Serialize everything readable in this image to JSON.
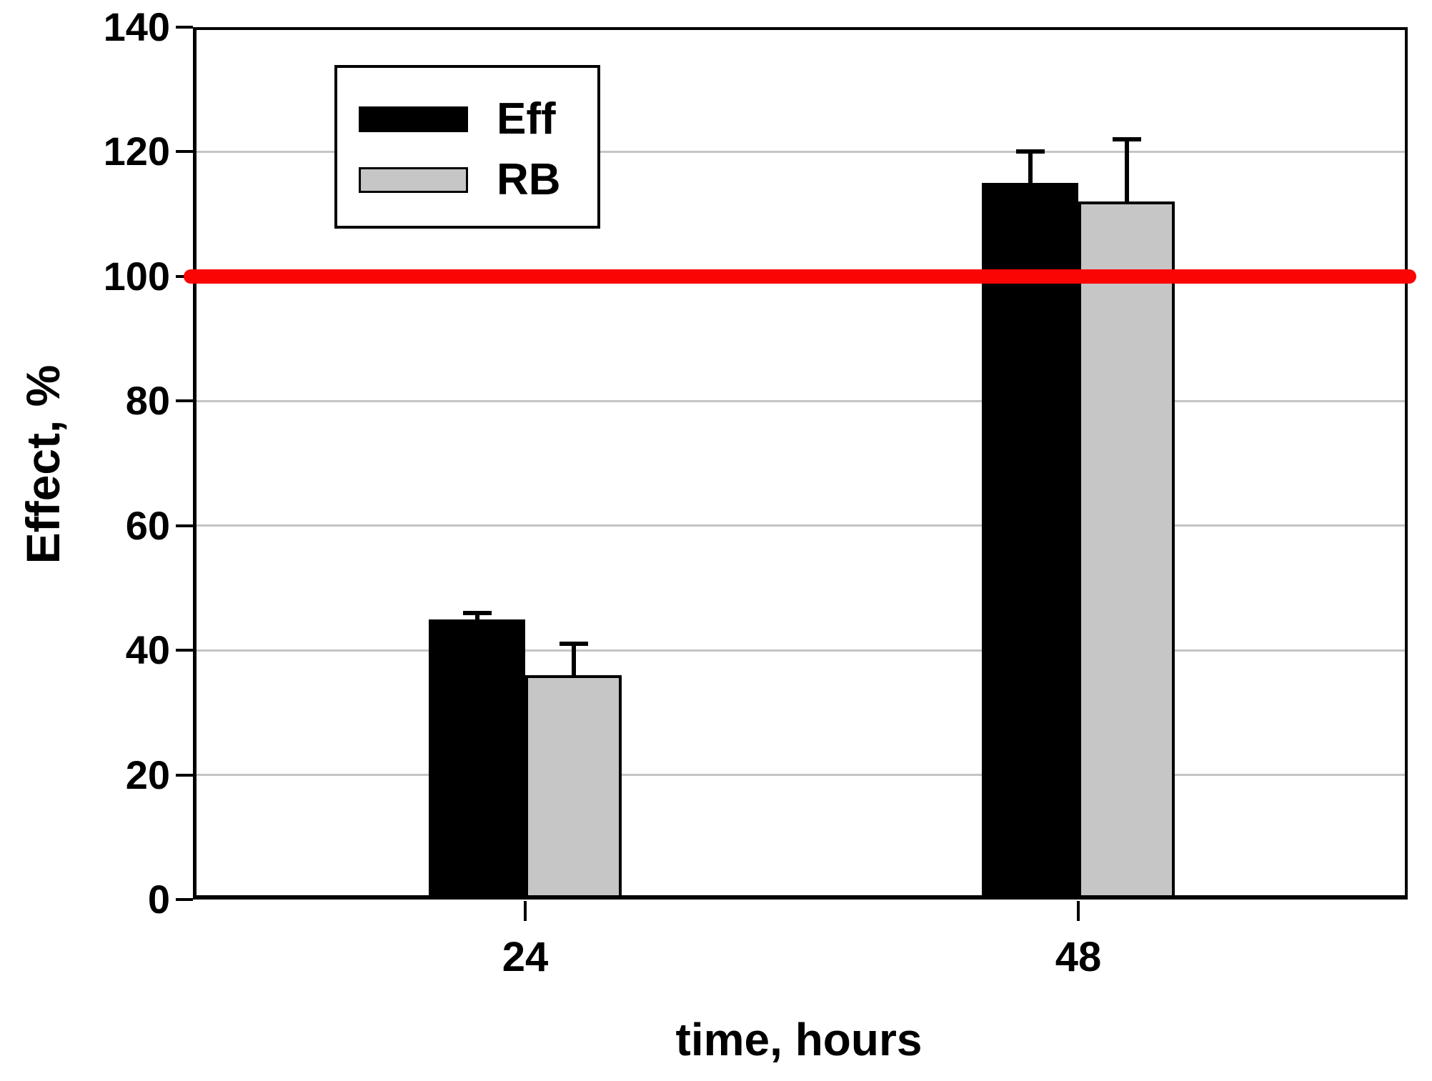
{
  "chart_data": {
    "type": "bar",
    "title": "",
    "xlabel": "time, hours",
    "ylabel": "Effect, %",
    "categories": [
      "24",
      "48"
    ],
    "series": [
      {
        "name": "Eff",
        "color": "#000000",
        "values": [
          45,
          115
        ],
        "errors_plus": [
          1,
          5
        ]
      },
      {
        "name": "RB",
        "color": "#c6c6c6",
        "values": [
          36,
          112
        ],
        "errors_plus": [
          5,
          10
        ]
      }
    ],
    "ylim": [
      0,
      140
    ],
    "yticks": [
      0,
      20,
      40,
      60,
      80,
      100,
      120,
      140
    ],
    "gridline_values": [
      20,
      40,
      60,
      80,
      100,
      120
    ],
    "grid": true,
    "gridline_color": "#c4c4c4",
    "axis_color": "#000000",
    "error_bar_color": "#000000",
    "reference_line": {
      "value": 100,
      "color": "#fb0404"
    },
    "legend": {
      "position": "top-left",
      "entries": [
        "Eff",
        "RB"
      ]
    }
  }
}
